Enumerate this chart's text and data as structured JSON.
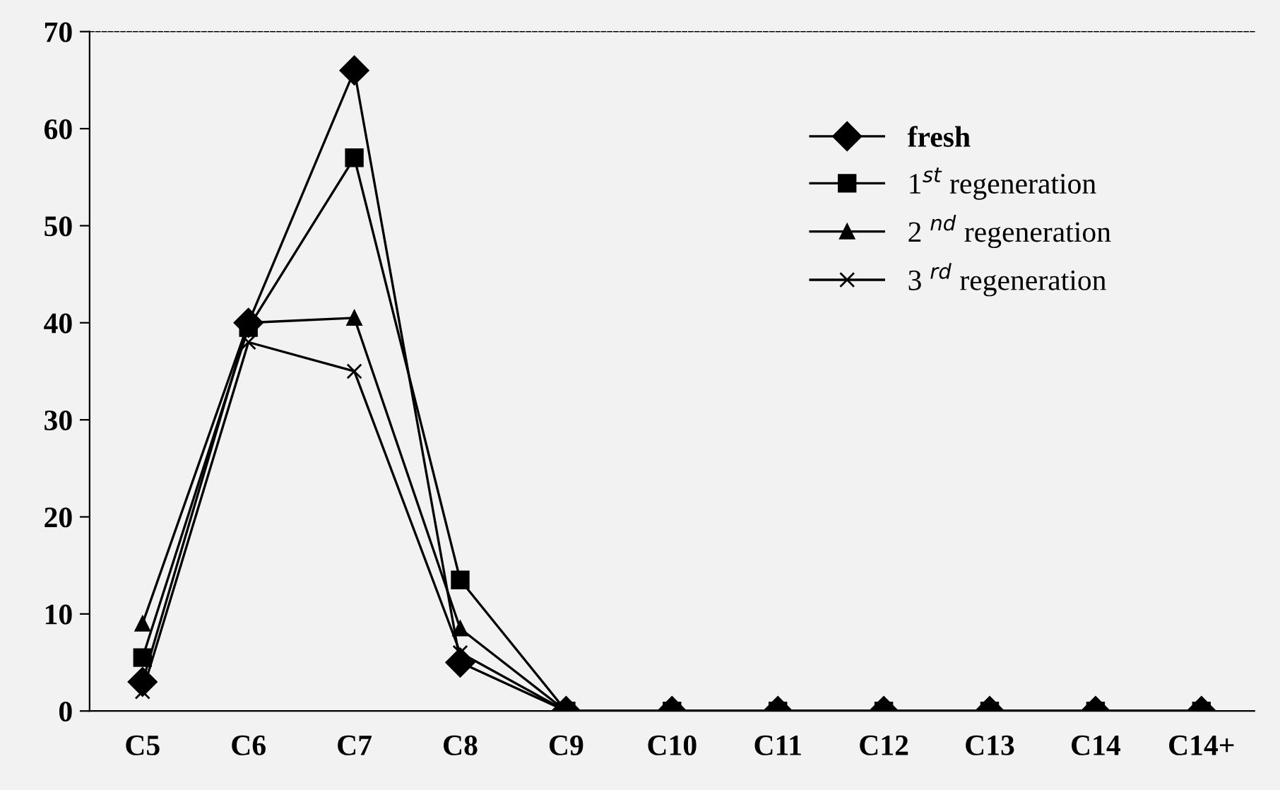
{
  "chart_data": {
    "type": "line",
    "categories": [
      "C5",
      "C6",
      "C7",
      "C8",
      "C9",
      "C10",
      "C11",
      "C12",
      "C13",
      "C14",
      "C14+"
    ],
    "series": [
      {
        "name": "fresh",
        "color": "#000000",
        "marker": "diamond",
        "values": [
          3,
          40,
          66,
          5,
          0,
          0,
          0,
          0,
          0,
          0,
          0
        ]
      },
      {
        "name": "1$^{st}$ regeneration",
        "color": "#000000",
        "marker": "square",
        "values": [
          5.5,
          39.5,
          57,
          13.5,
          0,
          0,
          0,
          0,
          0,
          0,
          0
        ]
      },
      {
        "name": "2 $^{nd}$ regeneration",
        "color": "#000000",
        "marker": "triangle",
        "values": [
          9,
          40,
          40.5,
          8.5,
          0,
          0,
          0,
          0,
          0,
          0,
          0
        ]
      },
      {
        "name": "3 $^{rd}$ regeneration",
        "color": "#000000",
        "marker": "cross",
        "values": [
          2,
          38,
          35,
          6,
          0,
          0,
          0,
          0,
          0,
          0,
          0
        ]
      }
    ],
    "ylim": [
      0,
      70
    ],
    "yticks": [
      0,
      10,
      20,
      30,
      40,
      50,
      60,
      70
    ],
    "grid": false,
    "legend": "top right",
    "line_style": "solid"
  }
}
